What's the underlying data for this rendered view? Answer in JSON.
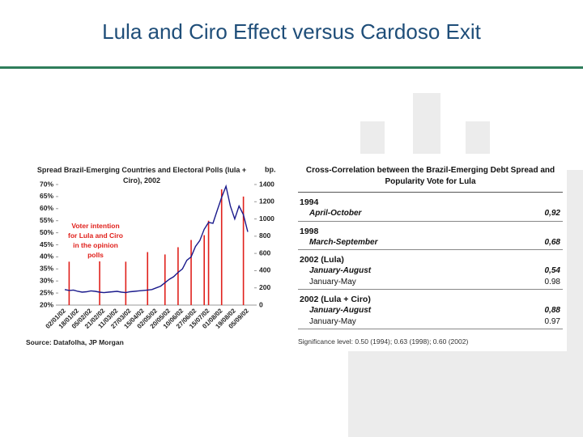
{
  "title": "Lula and Ciro Effect versus Cardoso Exit",
  "chart_data": {
    "type": "combo",
    "title": "Spread Brazil-Emerging Countries and Electoral Polls (lula + Ciro), 2002",
    "y2_label": "bp.",
    "annotation": "Voter intention for Lula and Ciro in the opinion polls",
    "source": "Source: Datafolha, JP Morgan",
    "categories": [
      "02/01/02",
      null,
      null,
      "18/01/02",
      null,
      null,
      "05/02/02",
      null,
      null,
      "21/02/02",
      null,
      null,
      "11/03/02",
      null,
      null,
      "27/03/02",
      null,
      null,
      "15/04/02",
      null,
      null,
      "02/05/02",
      null,
      null,
      "20/05/02",
      null,
      null,
      "10/06/02",
      null,
      null,
      "27/06/02",
      null,
      null,
      "15/07/02",
      null,
      null,
      "01/08/02",
      null,
      null,
      "19/08/02",
      null,
      null,
      "05/09/02"
    ],
    "series": [
      {
        "name": "Voter intention for Lula and Ciro",
        "type": "bar",
        "color": "#e0201b",
        "values": [
          null,
          38,
          null,
          null,
          null,
          null,
          null,
          null,
          40,
          null,
          null,
          null,
          null,
          null,
          38,
          null,
          null,
          null,
          null,
          42,
          null,
          null,
          null,
          41,
          null,
          null,
          44,
          null,
          null,
          47,
          null,
          null,
          49,
          55,
          null,
          null,
          68,
          null,
          null,
          null,
          null,
          65,
          null
        ]
      },
      {
        "name": "Spread",
        "type": "line",
        "axis": "y2",
        "color": "#1a1a8c",
        "values": [
          180,
          170,
          175,
          160,
          150,
          155,
          165,
          160,
          150,
          145,
          150,
          155,
          160,
          150,
          145,
          155,
          160,
          165,
          170,
          175,
          180,
          200,
          220,
          260,
          300,
          330,
          380,
          420,
          520,
          560,
          680,
          750,
          880,
          960,
          950,
          1100,
          1250,
          1380,
          1150,
          1000,
          1150,
          1050,
          850
        ]
      }
    ],
    "ylim": [
      20,
      70
    ],
    "yticks": [
      {
        "value": 20,
        "label": "20%"
      },
      {
        "value": 25,
        "label": "25%"
      },
      {
        "value": 30,
        "label": "30%"
      },
      {
        "value": 35,
        "label": "35%"
      },
      {
        "value": 40,
        "label": "40%"
      },
      {
        "value": 45,
        "label": "45%"
      },
      {
        "value": 50,
        "label": "50%"
      },
      {
        "value": 55,
        "label": "55%"
      },
      {
        "value": 60,
        "label": "60%"
      },
      {
        "value": 65,
        "label": "65%"
      },
      {
        "value": 70,
        "label": "70%"
      }
    ],
    "y2lim": [
      0,
      1400
    ],
    "y2ticks": [
      0,
      200,
      400,
      600,
      800,
      1000,
      1200,
      1400
    ]
  },
  "table": {
    "title": "Cross-Correlation between the Brazil-Emerging Debt Spread and Popularity Vote for Lula",
    "groups": [
      {
        "label": "1994",
        "rows": [
          [
            "April-October",
            "0,92"
          ]
        ]
      },
      {
        "label": "1998",
        "rows": [
          [
            "March-September",
            "0,68"
          ]
        ]
      },
      {
        "label": "2002 (Lula)",
        "rows": [
          [
            "January-August",
            "0,54"
          ],
          [
            "January-May",
            "0.98"
          ]
        ]
      },
      {
        "label": "2002 (Lula + Ciro)",
        "rows": [
          [
            "January-August",
            "0,88"
          ],
          [
            "January-May",
            "0.97"
          ]
        ]
      }
    ],
    "note": "Significance level: 0.50 (1994); 0.63 (1998); 0.60 (2002)"
  }
}
